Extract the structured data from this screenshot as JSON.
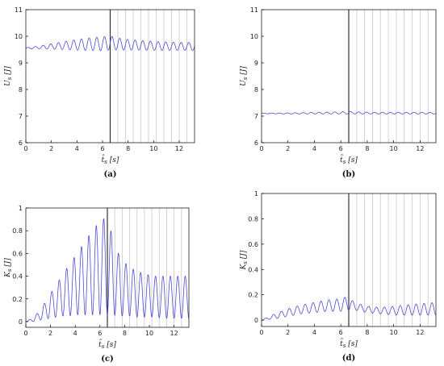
{
  "figure": {
    "panels": [
      {
        "id": "a",
        "caption": "(a)",
        "xlabel": "t̂_s [s]",
        "ylabel": "U_s [J]"
      },
      {
        "id": "b",
        "caption": "(b)",
        "xlabel": "t̂_s [s]",
        "ylabel": "U_s [J]"
      },
      {
        "id": "c",
        "caption": "(c)",
        "xlabel": "t̂_s [s]",
        "ylabel": "K_s [J]"
      },
      {
        "id": "d",
        "caption": "(d)",
        "xlabel": "t̂_s [s]",
        "ylabel": "K_s [J]"
      }
    ]
  },
  "colors": {
    "series": "#4b4bd6",
    "marker_line": "#c8c8c8",
    "event_line": "#333333",
    "axis": "#000000"
  },
  "chart_data": [
    {
      "panel": "a",
      "type": "line",
      "title": "",
      "caption": "(a)",
      "xlabel": "t̂_s [s]",
      "ylabel": "U_s [J]",
      "xlim": [
        0,
        13.2
      ],
      "ylim": [
        6,
        11
      ],
      "xticks": [
        0,
        2,
        4,
        6,
        8,
        10,
        12
      ],
      "yticks": [
        6,
        7,
        8,
        9,
        10,
        11
      ],
      "event_time": 6.6,
      "oscillation_period": 0.6,
      "marker_times": [
        7.2,
        7.8,
        8.4,
        9.0,
        9.6,
        10.2,
        10.8,
        11.4,
        12.0,
        12.6
      ],
      "x": [
        0,
        1,
        2,
        3,
        4,
        5,
        6,
        6.6,
        7,
        8,
        9,
        10,
        11,
        12,
        13.2
      ],
      "series": [
        {
          "name": "",
          "values_baseline": [
            9.55,
            9.58,
            9.62,
            9.65,
            9.68,
            9.7,
            9.72,
            9.75,
            9.72,
            9.68,
            9.66,
            9.64,
            9.63,
            9.62,
            9.62
          ],
          "values_amplitude": [
            0.02,
            0.05,
            0.1,
            0.15,
            0.2,
            0.24,
            0.26,
            0.27,
            0.23,
            0.2,
            0.18,
            0.17,
            0.16,
            0.15,
            0.15
          ]
        }
      ]
    },
    {
      "panel": "b",
      "type": "line",
      "title": "",
      "caption": "(b)",
      "xlabel": "t̂_s [s]",
      "ylabel": "U_s [J]",
      "xlim": [
        0,
        13.2
      ],
      "ylim": [
        6,
        11
      ],
      "xticks": [
        0,
        2,
        4,
        6,
        8,
        10,
        12
      ],
      "yticks": [
        6,
        7,
        8,
        9,
        10,
        11
      ],
      "event_time": 6.6,
      "oscillation_period": 0.6,
      "marker_times": [
        7.2,
        7.8,
        8.4,
        9.0,
        9.6,
        10.2,
        10.8,
        11.4,
        12.0,
        12.6
      ],
      "x": [
        0,
        2,
        4,
        6,
        6.6,
        7,
        9,
        11,
        13.2
      ],
      "series": [
        {
          "name": "",
          "values_baseline": [
            7.1,
            7.1,
            7.11,
            7.12,
            7.13,
            7.12,
            7.11,
            7.11,
            7.11
          ],
          "values_amplitude": [
            0.01,
            0.02,
            0.03,
            0.04,
            0.05,
            0.04,
            0.03,
            0.03,
            0.03
          ]
        }
      ]
    },
    {
      "panel": "c",
      "type": "line",
      "title": "",
      "caption": "(c)",
      "xlabel": "t̂_s [s]",
      "ylabel": "K_s [J]",
      "xlim": [
        0,
        13.2
      ],
      "ylim": [
        -0.05,
        1.0
      ],
      "xticks": [
        0,
        2,
        4,
        6,
        8,
        10,
        12
      ],
      "yticks": [
        0,
        0.2,
        0.4,
        0.6,
        0.8,
        1
      ],
      "event_time": 6.6,
      "oscillation_period": 0.6,
      "marker_times": [
        7.2,
        7.8,
        8.4,
        9.0,
        9.6,
        10.2,
        10.8,
        11.4,
        12.0,
        12.6
      ],
      "x": [
        0,
        0.5,
        1,
        1.5,
        2,
        2.5,
        3,
        3.5,
        4,
        4.5,
        5,
        5.5,
        6,
        6.6,
        7,
        7.5,
        8,
        8.5,
        9,
        9.5,
        10,
        10.5,
        11,
        11.5,
        12,
        12.5,
        13.2
      ],
      "series": [
        {
          "name": "",
          "values_floor": [
            0,
            0,
            0.01,
            0.02,
            0.03,
            0.04,
            0.05,
            0.05,
            0.06,
            0.06,
            0.06,
            0.06,
            0.06,
            0.06,
            0.06,
            0.05,
            0.05,
            0.05,
            0.04,
            0.04,
            0.04,
            0.04,
            0.03,
            0.03,
            0.03,
            0.03,
            0.03
          ],
          "values_peak": [
            0,
            0.03,
            0.08,
            0.16,
            0.25,
            0.33,
            0.42,
            0.5,
            0.58,
            0.66,
            0.74,
            0.82,
            0.88,
            0.93,
            0.75,
            0.6,
            0.52,
            0.47,
            0.45,
            0.42,
            0.41,
            0.4,
            0.4,
            0.4,
            0.4,
            0.4,
            0.4
          ]
        }
      ]
    },
    {
      "panel": "d",
      "type": "line",
      "title": "",
      "caption": "(d)",
      "xlabel": "t̂_s [s]",
      "ylabel": "K_s [J]",
      "xlim": [
        0,
        13.2
      ],
      "ylim": [
        -0.05,
        1.0
      ],
      "xticks": [
        0,
        2,
        4,
        6,
        8,
        10,
        12
      ],
      "yticks": [
        0,
        0.2,
        0.4,
        0.6,
        0.8,
        1
      ],
      "event_time": 6.6,
      "oscillation_period": 0.6,
      "marker_times": [
        7.2,
        7.8,
        8.4,
        9.0,
        9.6,
        10.2,
        10.8,
        11.4,
        12.0,
        12.6
      ],
      "x": [
        0,
        1,
        2,
        3,
        4,
        5,
        6,
        6.6,
        7,
        8,
        9,
        10,
        11,
        12,
        13.2
      ],
      "series": [
        {
          "name": "",
          "values_floor": [
            0,
            0.01,
            0.03,
            0.05,
            0.06,
            0.07,
            0.07,
            0.08,
            0.08,
            0.06,
            0.05,
            0.04,
            0.04,
            0.04,
            0.04
          ],
          "values_peak": [
            0,
            0.05,
            0.09,
            0.12,
            0.14,
            0.16,
            0.17,
            0.19,
            0.14,
            0.11,
            0.1,
            0.11,
            0.12,
            0.13,
            0.14
          ]
        }
      ]
    }
  ]
}
